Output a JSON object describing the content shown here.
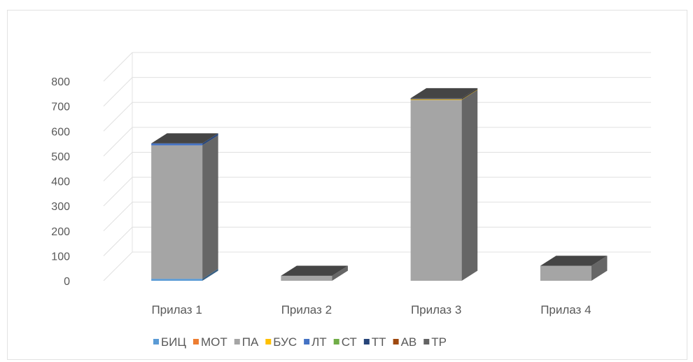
{
  "chart_data": {
    "type": "bar",
    "stacked": true,
    "three_d": true,
    "categories": [
      "Прилаз 1",
      "Прилаз 2",
      "Прилаз 3",
      "Прилаз 4"
    ],
    "series": [
      {
        "name": "БИЦ",
        "color": "#5b9bd5",
        "values": [
          8,
          0,
          0,
          0
        ]
      },
      {
        "name": "МОТ",
        "color": "#ed7d31",
        "values": [
          0,
          0,
          0,
          0
        ]
      },
      {
        "name": "ПА",
        "color": "#a5a5a5",
        "values": [
          535,
          20,
          725,
          60
        ]
      },
      {
        "name": "БУС",
        "color": "#ffc000",
        "values": [
          0,
          0,
          2,
          0
        ]
      },
      {
        "name": "ЛТ",
        "color": "#4472c4",
        "values": [
          8,
          0,
          0,
          0
        ]
      },
      {
        "name": "СТ",
        "color": "#70ad47",
        "values": [
          0,
          0,
          0,
          0
        ]
      },
      {
        "name": "ТТ",
        "color": "#264478",
        "values": [
          0,
          0,
          0,
          0
        ]
      },
      {
        "name": "АВ",
        "color": "#9e480e",
        "values": [
          0,
          0,
          0,
          0
        ]
      },
      {
        "name": "ТР",
        "color": "#636363",
        "values": [
          0,
          0,
          5,
          0
        ]
      }
    ],
    "ylim": [
      0,
      800
    ],
    "yticks": [
      "0",
      "100",
      "200",
      "300",
      "400",
      "500",
      "600",
      "700",
      "800"
    ],
    "grid": true,
    "legend_position": "bottom"
  }
}
